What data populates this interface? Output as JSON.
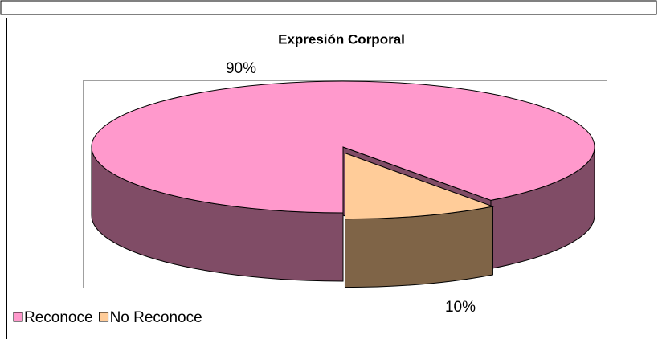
{
  "chart_data": {
    "type": "pie",
    "title": "Expresión Corporal",
    "categories": [
      "Reconoce",
      "No Reconoce"
    ],
    "values": [
      90,
      10
    ],
    "value_labels": [
      "90%",
      "10%"
    ],
    "colors": [
      "#FF99CC",
      "#FFCC99"
    ],
    "side_colors": [
      "#804C66",
      "#7F6447"
    ],
    "legend": "bottom-left"
  }
}
